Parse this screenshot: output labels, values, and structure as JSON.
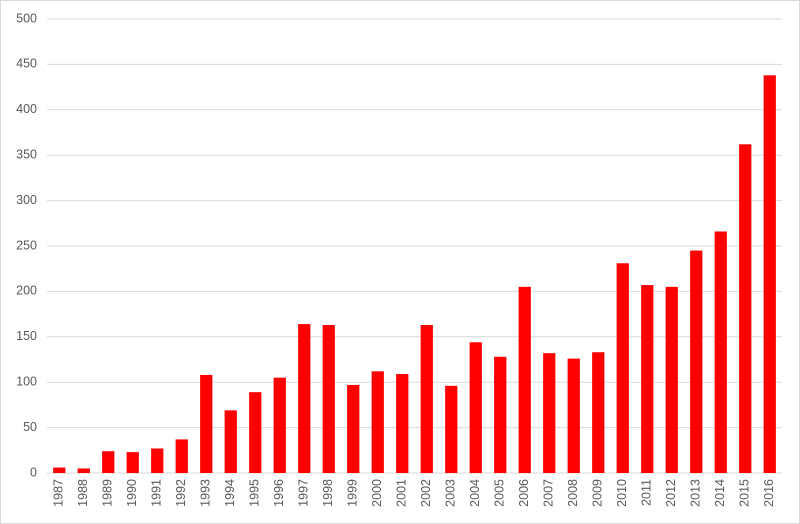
{
  "chart_data": {
    "type": "bar",
    "categories": [
      "1987",
      "1988",
      "1989",
      "1990",
      "1991",
      "1992",
      "1993",
      "1994",
      "1995",
      "1996",
      "1997",
      "1998",
      "1999",
      "2000",
      "2001",
      "2002",
      "2003",
      "2004",
      "2005",
      "2006",
      "2007",
      "2008",
      "2009",
      "2010",
      "2011",
      "2012",
      "2013",
      "2014",
      "2015",
      "2016"
    ],
    "values": [
      6,
      5,
      24,
      23,
      27,
      37,
      108,
      69,
      89,
      105,
      164,
      163,
      97,
      112,
      109,
      163,
      96,
      144,
      128,
      205,
      132,
      126,
      133,
      231,
      207,
      205,
      245,
      266,
      362,
      438
    ],
    "color": "#ff0000",
    "ylim": [
      0,
      500
    ],
    "yticks": [
      0,
      50,
      100,
      150,
      200,
      250,
      300,
      350,
      400,
      450,
      500
    ],
    "grid": true
  }
}
